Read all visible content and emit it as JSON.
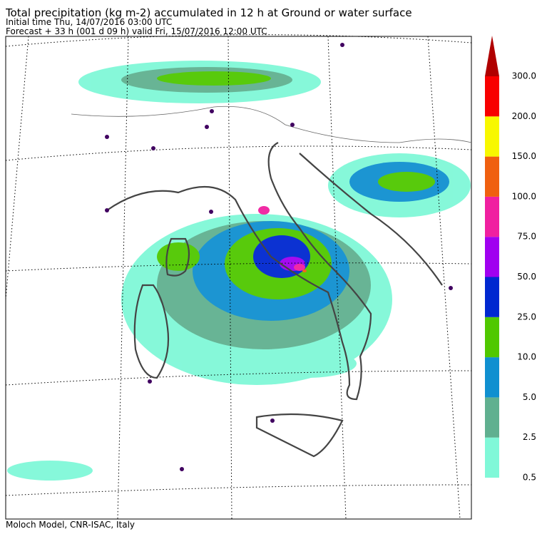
{
  "header": {
    "title": "Total precipitation (kg m-2) accumulated in  12 h at Ground or water surface",
    "initial_time": "Initial time  Thu, 14/07/2016  03:00 UTC",
    "forecast": "Forecast  +  33 h  (001 d 09 h)  valid Fri, 15/07/2016 12:00 UTC"
  },
  "legend": {
    "ticks": [
      {
        "value": 0.5,
        "label": "0.5"
      },
      {
        "value": 2.5,
        "label": "2.5"
      },
      {
        "value": 5,
        "label": "5.0"
      },
      {
        "value": 10,
        "label": "10.0"
      },
      {
        "value": 25,
        "label": "25.0"
      },
      {
        "value": 50,
        "label": "50.0"
      },
      {
        "value": 75,
        "label": "75.0"
      },
      {
        "value": 100,
        "label": "100.0"
      },
      {
        "value": 150,
        "label": "150.0"
      },
      {
        "value": 200,
        "label": "200.0"
      },
      {
        "value": 300,
        "label": "300.0"
      }
    ],
    "colors": [
      "#80f8d8",
      "#60b090",
      "#1090d0",
      "#50c800",
      "#0028d0",
      "#a000f0",
      "#f020a0",
      "#f06010",
      "#f8f800",
      "#f80000",
      "#b00000"
    ]
  },
  "footer": "Moloch Model, CNR-ISAC, Italy"
}
